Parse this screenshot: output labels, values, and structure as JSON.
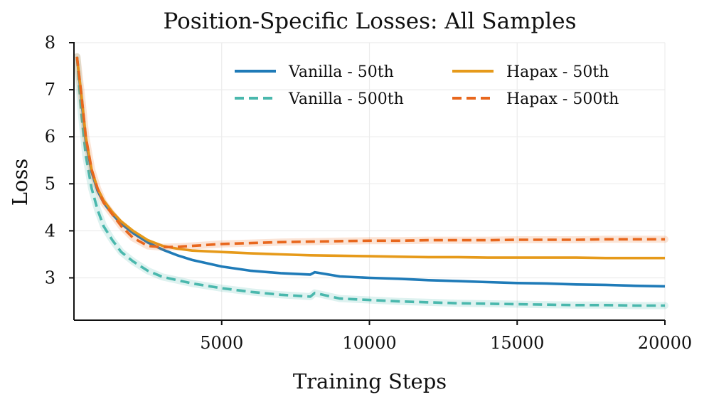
{
  "chart_data": {
    "type": "line",
    "title": "Position-Specific Losses: All Samples",
    "xlabel": "Training Steps",
    "ylabel": "Loss",
    "xlim": [
      0,
      20000
    ],
    "ylim": [
      2.1,
      8.0
    ],
    "xticks": [
      5000,
      10000,
      15000,
      20000
    ],
    "yticks": [
      3,
      4,
      5,
      6,
      7,
      8
    ],
    "grid": true,
    "legend_position": "top-right",
    "legend_columns": 2,
    "series": [
      {
        "name": "Vanilla - 50th",
        "color": "#1f7bb8",
        "style": "solid",
        "points": [
          [
            100,
            7.7
          ],
          [
            250,
            6.8
          ],
          [
            400,
            5.9
          ],
          [
            600,
            5.25
          ],
          [
            800,
            4.85
          ],
          [
            1000,
            4.6
          ],
          [
            1300,
            4.35
          ],
          [
            1600,
            4.15
          ],
          [
            2000,
            3.95
          ],
          [
            2500,
            3.75
          ],
          [
            3000,
            3.6
          ],
          [
            3500,
            3.48
          ],
          [
            4000,
            3.38
          ],
          [
            5000,
            3.24
          ],
          [
            6000,
            3.15
          ],
          [
            7000,
            3.1
          ],
          [
            8000,
            3.07
          ],
          [
            8150,
            3.12
          ],
          [
            9000,
            3.03
          ],
          [
            10000,
            3.0
          ],
          [
            11000,
            2.98
          ],
          [
            12000,
            2.95
          ],
          [
            13000,
            2.93
          ],
          [
            14000,
            2.91
          ],
          [
            15000,
            2.89
          ],
          [
            16000,
            2.88
          ],
          [
            17000,
            2.86
          ],
          [
            18000,
            2.85
          ],
          [
            19000,
            2.83
          ],
          [
            20000,
            2.82
          ]
        ]
      },
      {
        "name": "Vanilla - 500th",
        "color": "#4ab8ad",
        "style": "dashed",
        "points": [
          [
            100,
            7.7
          ],
          [
            250,
            6.5
          ],
          [
            400,
            5.6
          ],
          [
            600,
            4.9
          ],
          [
            800,
            4.45
          ],
          [
            1000,
            4.1
          ],
          [
            1300,
            3.8
          ],
          [
            1600,
            3.55
          ],
          [
            2000,
            3.35
          ],
          [
            2500,
            3.15
          ],
          [
            3000,
            3.02
          ],
          [
            4000,
            2.88
          ],
          [
            5000,
            2.78
          ],
          [
            6000,
            2.7
          ],
          [
            7000,
            2.64
          ],
          [
            8000,
            2.6
          ],
          [
            8150,
            2.68
          ],
          [
            9000,
            2.56
          ],
          [
            10000,
            2.53
          ],
          [
            11000,
            2.5
          ],
          [
            12000,
            2.48
          ],
          [
            13000,
            2.46
          ],
          [
            14000,
            2.45
          ],
          [
            15000,
            2.44
          ],
          [
            16000,
            2.43
          ],
          [
            17000,
            2.42
          ],
          [
            18000,
            2.42
          ],
          [
            19000,
            2.41
          ],
          [
            20000,
            2.41
          ]
        ]
      },
      {
        "name": "Hapax - 50th",
        "color": "#e69a1a",
        "style": "solid",
        "points": [
          [
            100,
            7.7
          ],
          [
            250,
            6.9
          ],
          [
            400,
            6.0
          ],
          [
            600,
            5.3
          ],
          [
            800,
            4.9
          ],
          [
            1000,
            4.65
          ],
          [
            1300,
            4.4
          ],
          [
            1600,
            4.2
          ],
          [
            2000,
            4.0
          ],
          [
            2500,
            3.8
          ],
          [
            3000,
            3.68
          ],
          [
            3500,
            3.62
          ],
          [
            4000,
            3.58
          ],
          [
            5000,
            3.55
          ],
          [
            6000,
            3.52
          ],
          [
            7000,
            3.5
          ],
          [
            8000,
            3.48
          ],
          [
            9000,
            3.47
          ],
          [
            10000,
            3.46
          ],
          [
            11000,
            3.45
          ],
          [
            12000,
            3.44
          ],
          [
            13000,
            3.44
          ],
          [
            14000,
            3.43
          ],
          [
            15000,
            3.43
          ],
          [
            16000,
            3.43
          ],
          [
            17000,
            3.43
          ],
          [
            18000,
            3.42
          ],
          [
            19000,
            3.42
          ],
          [
            20000,
            3.42
          ]
        ]
      },
      {
        "name": "Hapax - 500th",
        "color": "#e8671d",
        "style": "dashed",
        "points": [
          [
            100,
            7.7
          ],
          [
            250,
            6.9
          ],
          [
            400,
            6.0
          ],
          [
            600,
            5.3
          ],
          [
            800,
            4.9
          ],
          [
            1000,
            4.6
          ],
          [
            1300,
            4.35
          ],
          [
            1600,
            4.1
          ],
          [
            2000,
            3.85
          ],
          [
            2500,
            3.68
          ],
          [
            3000,
            3.65
          ],
          [
            3500,
            3.66
          ],
          [
            4000,
            3.68
          ],
          [
            5000,
            3.72
          ],
          [
            6000,
            3.74
          ],
          [
            7000,
            3.76
          ],
          [
            8000,
            3.77
          ],
          [
            9000,
            3.78
          ],
          [
            10000,
            3.79
          ],
          [
            11000,
            3.79
          ],
          [
            12000,
            3.8
          ],
          [
            13000,
            3.8
          ],
          [
            14000,
            3.8
          ],
          [
            15000,
            3.81
          ],
          [
            16000,
            3.81
          ],
          [
            17000,
            3.81
          ],
          [
            18000,
            3.82
          ],
          [
            19000,
            3.82
          ],
          [
            20000,
            3.82
          ]
        ]
      }
    ]
  }
}
